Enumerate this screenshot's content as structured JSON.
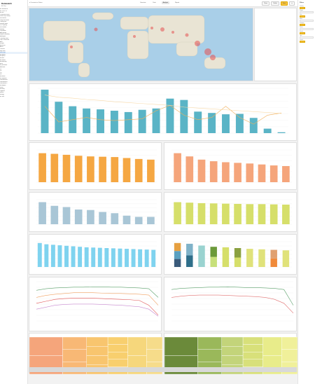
{
  "app": {
    "brand": "Datawatch",
    "subtitle": "All Files"
  },
  "topbar": {
    "breadcrumb": "▸ Coronavirus Data ▸",
    "tabs": [
      {
        "label": "Overview",
        "active": false
      },
      {
        "label": "Data",
        "active": false
      },
      {
        "label": "Analysis",
        "active": true
      },
      {
        "label": "Report",
        "active": false
      }
    ],
    "actions": [
      "Share",
      "Publish",
      "Save",
      "•••"
    ]
  },
  "sidebar": {
    "items": [
      "▾ Coronavirus",
      "  ▸ COVID-19",
      "  ▾ Data",
      "    Confirmed cases",
      "    Deaths by country",
      "    Recovered",
      "    Daily new cases",
      "    Testing rate",
      "    Hospital beds",
      "    ICU capacity",
      "    Vaccination",
      "    Mobility",
      "    Population",
      "    Age groups",
      "    Region summary",
      "  ▾ Analysis",
      "    Trend by week",
      "    Top 20 countries",
      "    Asia",
      "    Europe",
      "    Americas",
      "    Africa",
      "    Oceania",
      "    Map view",
      "    Heat map",
      "  ▸ Reports",
      "  ▸ Exports",
      "▸ Sales",
      "▸ Finance",
      "▸ Marketing",
      "▸ HR",
      "▸ Operations",
      "▸ Archive",
      "  Q1",
      "  Q2",
      "  Q3",
      "  Q4",
      "▸ Shared",
      "▸ Templates",
      "  Dashboard A",
      "  Dashboard B",
      "  Dashboard C",
      "▸ Samples",
      "  Retail",
      "  Banking",
      "  Logistics",
      "  Health",
      "  Energy",
      "▸ Trash"
    ],
    "active_index": 24
  },
  "right_panel": {
    "title": "Filters",
    "rows": [
      "Country",
      "Region",
      "Date",
      "Metric",
      "Category",
      "Status",
      "Source",
      "Type",
      "Period"
    ]
  }
}
